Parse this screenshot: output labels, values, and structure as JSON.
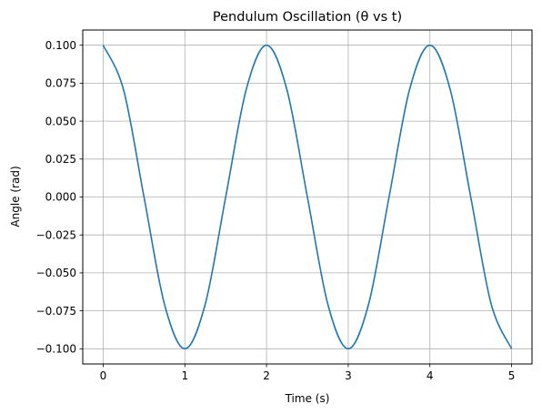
{
  "chart_data": {
    "type": "line",
    "title": "Pendulum Oscillation (θ vs t)",
    "xlabel": "Time (s)",
    "ylabel": "Angle (rad)",
    "xlim": [
      -0.25,
      5.25
    ],
    "ylim": [
      -0.11,
      0.11
    ],
    "grid": true,
    "xticks": [
      0,
      1,
      2,
      3,
      4,
      5
    ],
    "xtick_labels": [
      "0",
      "1",
      "2",
      "3",
      "4",
      "5"
    ],
    "yticks": [
      0.1,
      0.075,
      0.05,
      0.025,
      0.0,
      -0.025,
      -0.05,
      -0.075,
      -0.1
    ],
    "ytick_labels": [
      "0.100",
      "0.075",
      "0.050",
      "0.025",
      "0.000",
      "−0.025",
      "−0.050",
      "−0.075",
      "−0.100"
    ],
    "series": [
      {
        "color": "#1f77b4",
        "x": [
          0,
          0.25,
          0.5,
          0.75,
          1.0,
          1.25,
          1.5,
          1.75,
          2.0,
          2.25,
          2.5,
          2.75,
          3.0,
          3.25,
          3.5,
          3.75,
          4.0,
          4.25,
          4.5,
          4.75,
          5.0
        ],
        "y": [
          0.1,
          0.0705,
          0.0,
          -0.0705,
          -0.1,
          -0.0705,
          0.0,
          0.0705,
          0.1,
          0.0705,
          0.0,
          -0.0705,
          -0.1,
          -0.0705,
          0.0,
          0.0705,
          0.1,
          0.0705,
          0.0,
          -0.0705,
          -0.1
        ]
      }
    ]
  }
}
